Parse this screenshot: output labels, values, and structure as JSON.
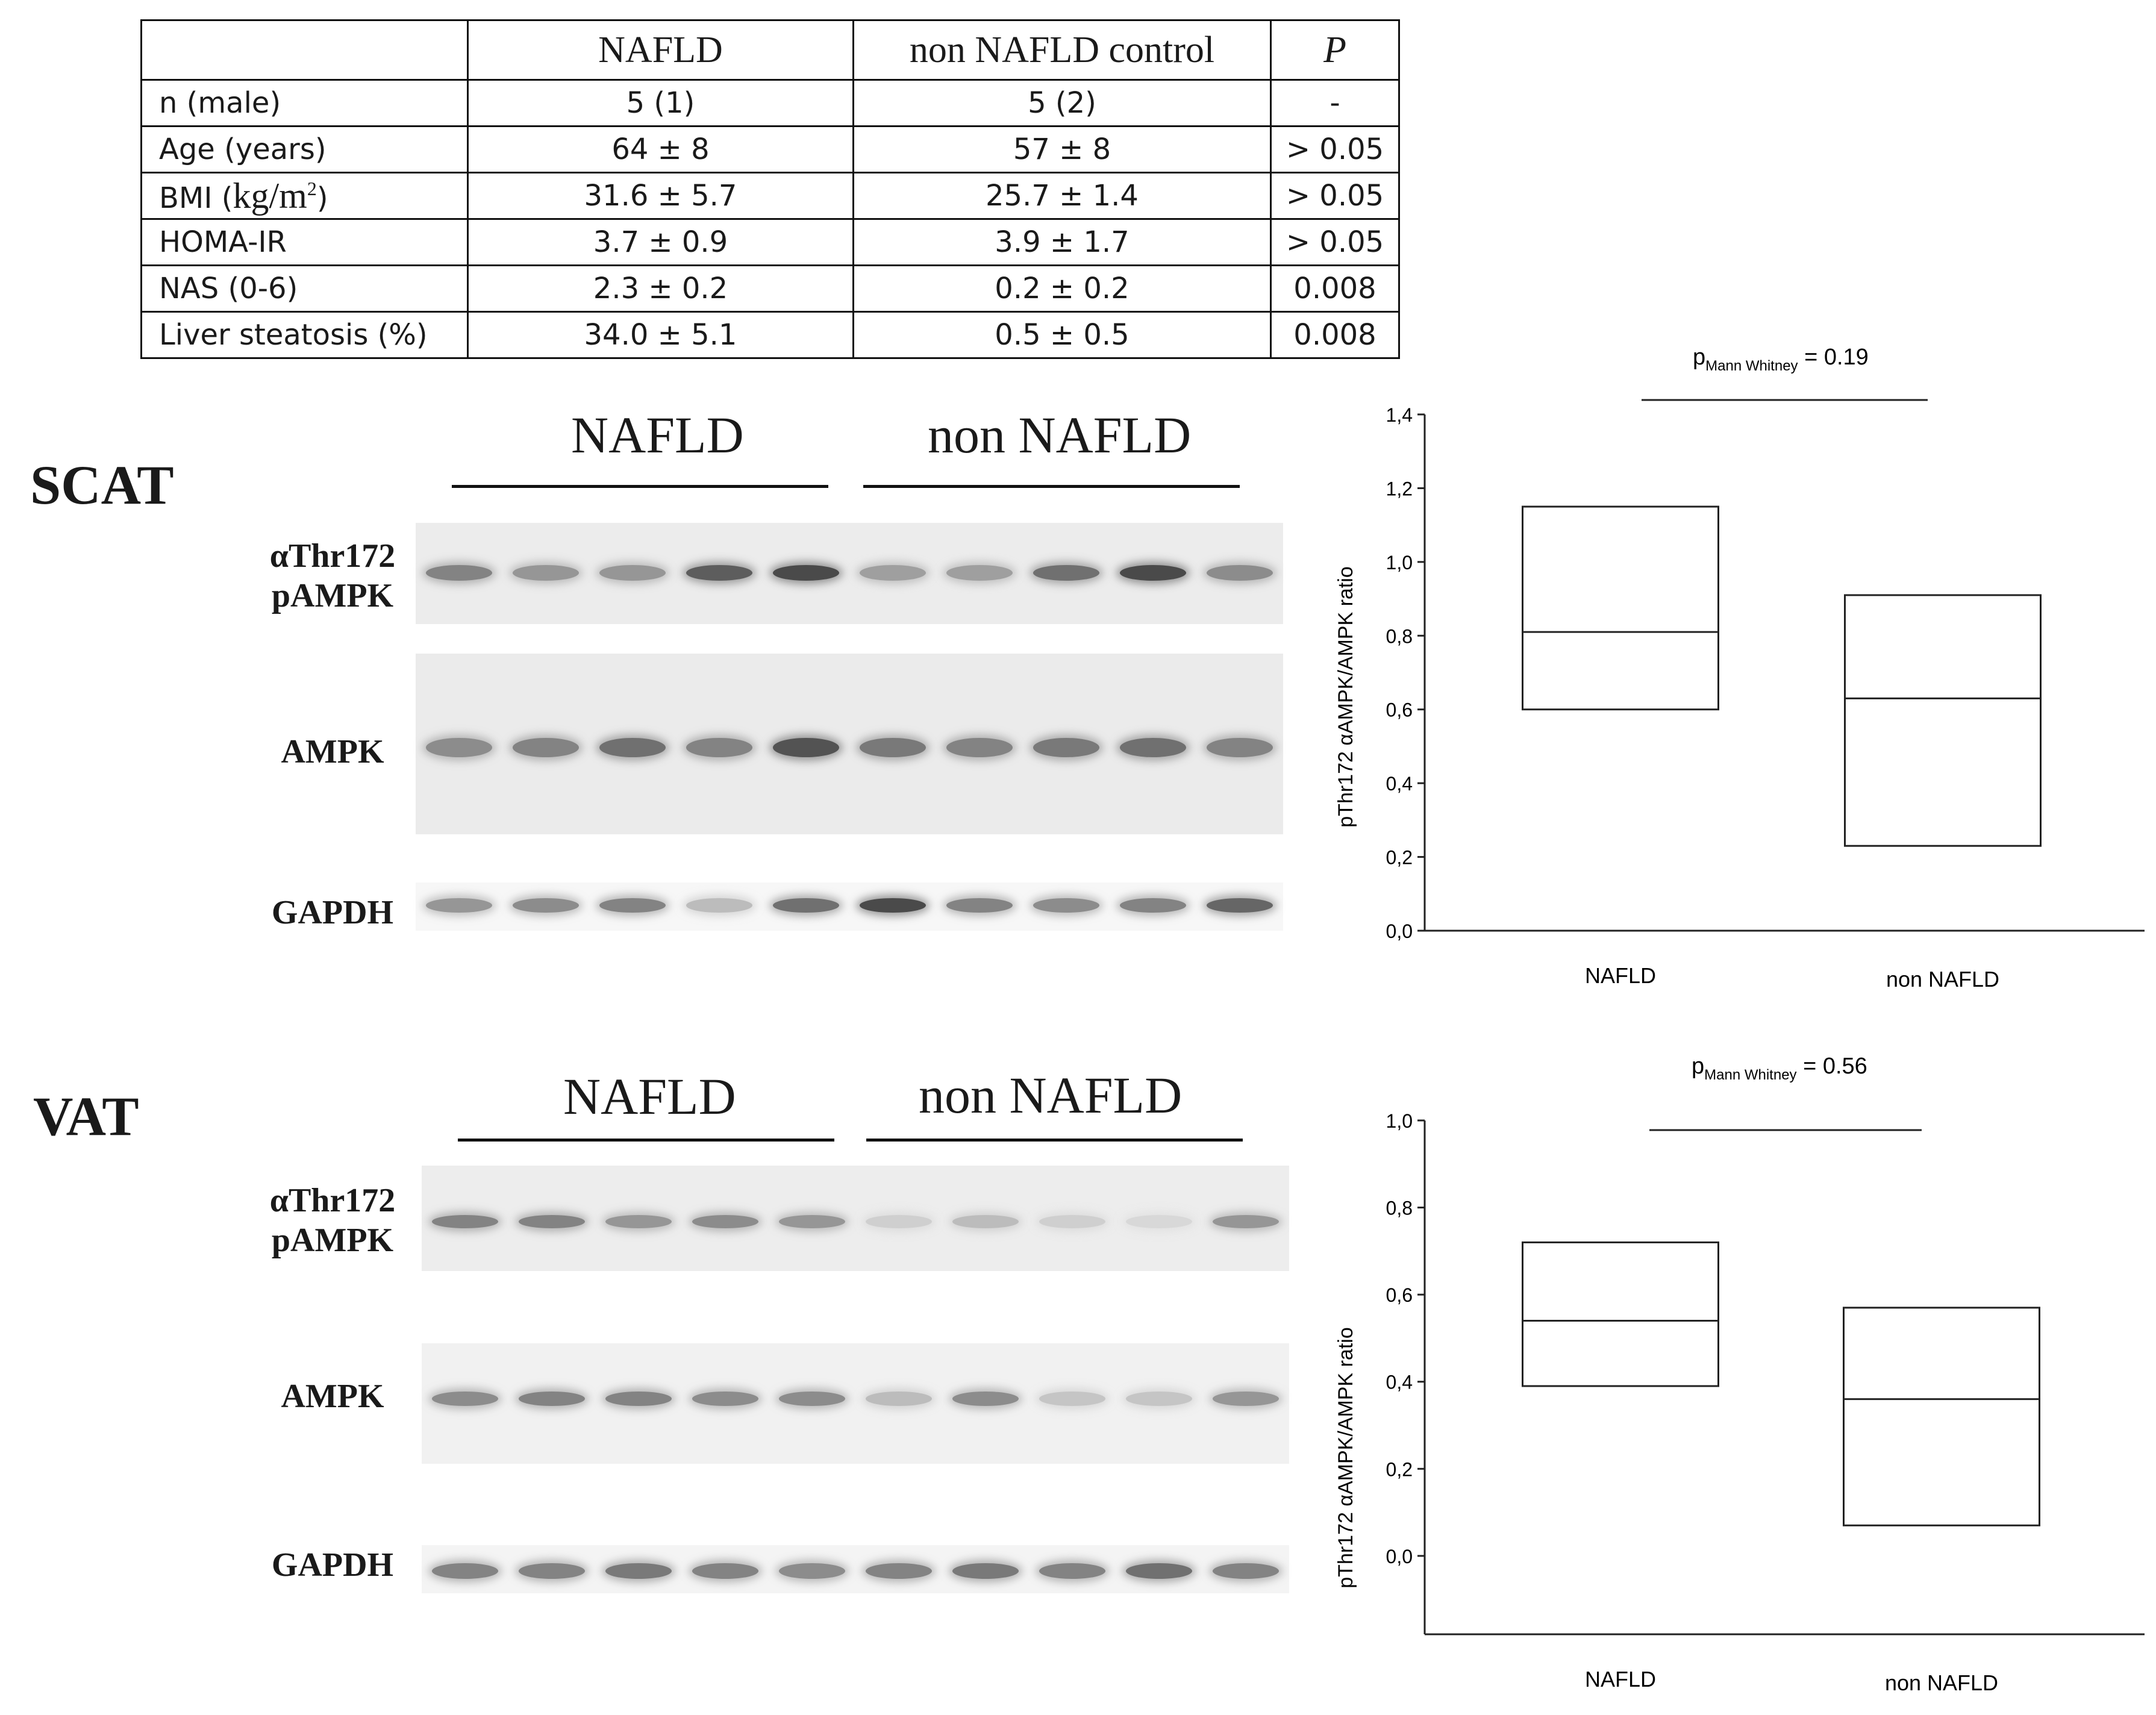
{
  "table": {
    "headers": [
      "",
      "NAFLD",
      "non NAFLD control",
      "P"
    ],
    "rows": [
      {
        "label": "n (male)",
        "nafld": "5 (1)",
        "control": "5 (2)",
        "p": "-"
      },
      {
        "label": "Age (years)",
        "nafld": "64 ± 8",
        "control": "57 ± 8",
        "p": "> 0.05"
      },
      {
        "label": "BMI (",
        "unit": "kg/m",
        "unit_sup": "2",
        "unit_close": ")",
        "nafld": "31.6 ± 5.7",
        "control": "25.7 ± 1.4",
        "p": "> 0.05"
      },
      {
        "label": "HOMA-IR",
        "nafld": "3.7 ± 0.9",
        "control": "3.9 ± 1.7",
        "p": "> 0.05"
      },
      {
        "label": "NAS (0-6)",
        "nafld": "2.3 ± 0.2",
        "control": "0.2 ± 0.2",
        "p": "0.008"
      },
      {
        "label": "Liver steatosis (%)",
        "nafld": "34.0 ± 5.1",
        "control": "0.5 ± 0.5",
        "p": "0.008"
      }
    ]
  },
  "panels": [
    {
      "title": "SCAT",
      "groups": [
        "NAFLD",
        "non NAFLD"
      ],
      "rows": [
        "αThr172\npAMPK",
        "AMPK",
        "GAPDH"
      ],
      "band_intensity": {
        "pAMPK": [
          0.55,
          0.45,
          0.45,
          0.75,
          0.85,
          0.4,
          0.4,
          0.65,
          0.85,
          0.5
        ],
        "AMPK": [
          0.5,
          0.55,
          0.65,
          0.55,
          0.8,
          0.6,
          0.55,
          0.6,
          0.65,
          0.55
        ],
        "GAPDH": [
          0.45,
          0.5,
          0.55,
          0.25,
          0.65,
          0.85,
          0.55,
          0.5,
          0.55,
          0.7
        ]
      }
    },
    {
      "title": "VAT",
      "groups": [
        "NAFLD",
        "non NAFLD"
      ],
      "rows": [
        "αThr172\npAMPK",
        "AMPK",
        "GAPDH"
      ],
      "band_intensity": {
        "pAMPK": [
          0.55,
          0.55,
          0.45,
          0.5,
          0.45,
          0.15,
          0.25,
          0.15,
          0.1,
          0.45
        ],
        "AMPK": [
          0.5,
          0.55,
          0.55,
          0.5,
          0.5,
          0.25,
          0.5,
          0.2,
          0.2,
          0.45
        ],
        "GAPDH": [
          0.55,
          0.55,
          0.6,
          0.55,
          0.5,
          0.55,
          0.6,
          0.55,
          0.65,
          0.55
        ]
      }
    }
  ],
  "chart_data": [
    {
      "type": "box",
      "title": "",
      "annotation": {
        "p": "p",
        "p_sub": "Mann Whitney",
        "value": " = 0.19"
      },
      "ylabel": "pThr172 αAMPK/AMPK ratio",
      "categories": [
        "NAFLD",
        "non NAFLD"
      ],
      "ylim": [
        0,
        1.4
      ],
      "yticks": [
        "0,0",
        "0,2",
        "0,4",
        "0,6",
        "0,8",
        "1,0",
        "1,2",
        "1,4"
      ],
      "ytick_values": [
        0,
        0.2,
        0.4,
        0.6,
        0.8,
        1.0,
        1.2,
        1.4
      ],
      "boxes": [
        {
          "name": "NAFLD",
          "q1": 0.6,
          "median": 0.81,
          "q3": 1.15
        },
        {
          "name": "non NAFLD",
          "q1": 0.23,
          "median": 0.63,
          "q3": 0.91
        }
      ]
    },
    {
      "type": "box",
      "title": "",
      "annotation": {
        "p": "p",
        "p_sub": "Mann Whitney",
        "value": " = 0.56"
      },
      "ylabel": "pThr172 αAMPK/AMPK ratio",
      "categories": [
        "NAFLD",
        "non NAFLD"
      ],
      "ylim": [
        -0.18,
        1.0
      ],
      "yticks": [
        "0,0",
        "0,2",
        "0,4",
        "0,6",
        "0,8",
        "1,0"
      ],
      "ytick_values": [
        0,
        0.2,
        0.4,
        0.6,
        0.8,
        1.0
      ],
      "boxes": [
        {
          "name": "NAFLD",
          "q1": 0.39,
          "median": 0.54,
          "q3": 0.72
        },
        {
          "name": "non NAFLD",
          "q1": 0.07,
          "median": 0.36,
          "q3": 0.57
        }
      ]
    }
  ]
}
